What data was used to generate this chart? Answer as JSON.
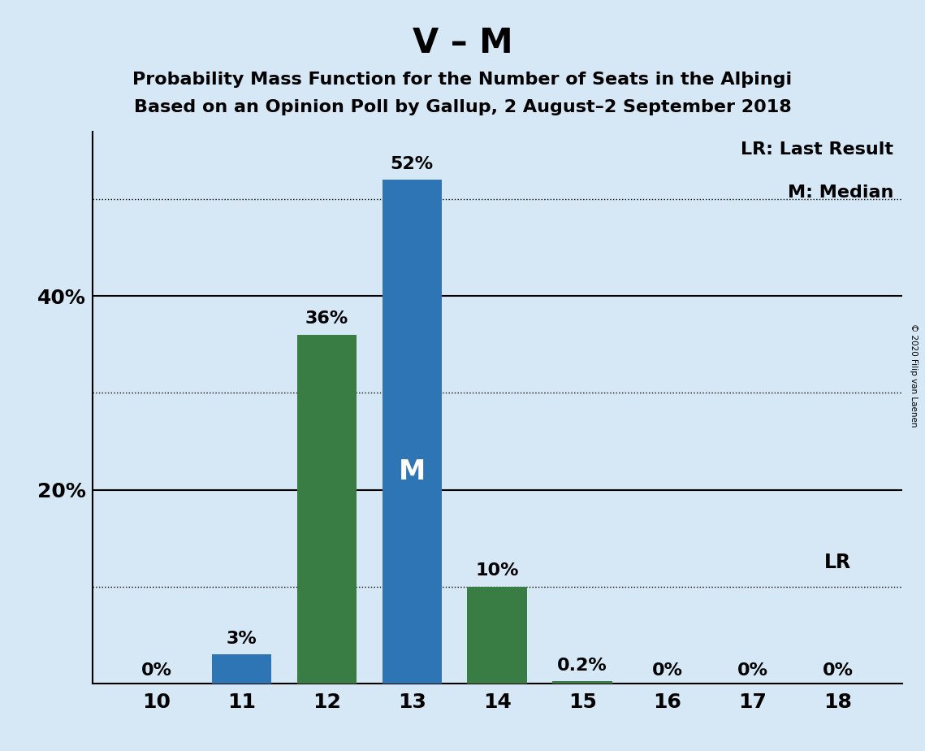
{
  "title": "V – M",
  "subtitle1": "Probability Mass Function for the Number of Seats in the Alþingi",
  "subtitle2": "Based on an Opinion Poll by Gallup, 2 August–2 September 2018",
  "copyright": "© 2020 Filip van Laenen",
  "seats": [
    10,
    11,
    12,
    13,
    14,
    15,
    16,
    17,
    18
  ],
  "values": [
    0.0,
    3.0,
    36.0,
    52.0,
    10.0,
    0.2,
    0.0,
    0.0,
    0.0
  ],
  "labels": [
    "0%",
    "3%",
    "36%",
    "52%",
    "10%",
    "0.2%",
    "0%",
    "0%",
    "0%"
  ],
  "colors": [
    "#2E75B6",
    "#2E75B6",
    "#3A7D44",
    "#2E75B6",
    "#3A7D44",
    "#3A7D44",
    "#3A7D44",
    "#3A7D44",
    "#2E75B6"
  ],
  "median_seat": 13,
  "median_label": "M",
  "lr_seat": 18,
  "lr_label": "LR",
  "legend_lr": "LR: Last Result",
  "legend_m": "M: Median",
  "background_color": "#D6E8F5",
  "bar_width": 0.7,
  "ylim_max": 57,
  "dotted_yticks": [
    10,
    30,
    50
  ],
  "solid_yticks": [
    20,
    40
  ],
  "title_fontsize": 30,
  "subtitle_fontsize": 16,
  "label_fontsize": 16,
  "tick_fontsize": 18,
  "legend_fontsize": 16,
  "median_label_fontsize": 24,
  "lr_label_fontsize": 17
}
